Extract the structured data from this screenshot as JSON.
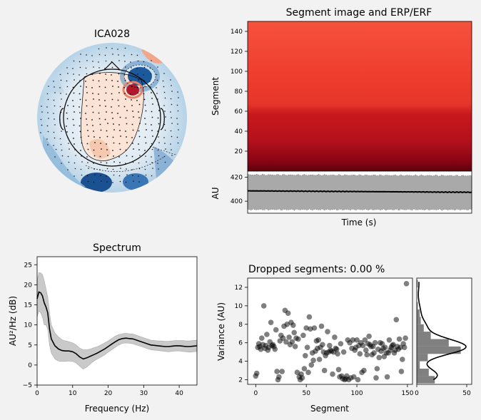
{
  "topomap": {
    "title": "ICA028"
  },
  "segment_image": {
    "title": "Segment image and ERP/ERF",
    "ylabel": "Segment",
    "ylim": [
      0,
      150
    ],
    "yticks": [
      "20",
      "40",
      "60",
      "80",
      "100",
      "120",
      "140"
    ]
  },
  "erp": {
    "ylabel": "AU",
    "xlabel": "Time (s)",
    "ylim": [
      390,
      425
    ],
    "yticks": [
      "400",
      "420"
    ],
    "mean": 408,
    "band": [
      393,
      422
    ]
  },
  "spectrum": {
    "title": "Spectrum",
    "xlabel": "Frequency (Hz)",
    "ylabel": "AU²/Hz (dB)",
    "xlim": [
      0,
      45
    ],
    "ylim": [
      -5,
      27
    ],
    "xticks": [
      "0",
      "10",
      "20",
      "30",
      "40"
    ],
    "yticks": [
      "−5",
      "0",
      "5",
      "10",
      "15",
      "20",
      "25"
    ]
  },
  "dropped": {
    "title": "Dropped segments: 0.00 %",
    "xlabel": "Segment",
    "ylabel": "Variance (AU)",
    "xlim": [
      -8,
      155
    ],
    "ylim": [
      1.5,
      13
    ],
    "xticks": [
      "0",
      "50",
      "100",
      "150"
    ],
    "yticks": [
      "2",
      "4",
      "6",
      "8",
      "10",
      "12"
    ],
    "hist_xticks": [
      "0",
      "50"
    ]
  },
  "chart_data": [
    {
      "type": "heatmap",
      "title": "Segment image and ERP/ERF",
      "ylabel": "Segment",
      "ylim": [
        0,
        150
      ],
      "colormap": "Reds"
    },
    {
      "type": "line",
      "ylabel": "AU",
      "xlabel": "Time (s)",
      "ylim": [
        390,
        425
      ],
      "mean_value": 408,
      "band": [
        393,
        422
      ]
    },
    {
      "type": "line",
      "title": "Spectrum",
      "xlabel": "Frequency (Hz)",
      "ylabel": "AU²/Hz (dB)",
      "xlim": [
        0,
        45
      ],
      "ylim": [
        -5,
        27
      ],
      "x": [
        0,
        0.5,
        1,
        1.5,
        2,
        2.5,
        3,
        3.5,
        4,
        5,
        6,
        7,
        8,
        9,
        10,
        11,
        12,
        13,
        14,
        15,
        16,
        17,
        18,
        19,
        20,
        21,
        22,
        23,
        24,
        25,
        26,
        27,
        28,
        29,
        30,
        31,
        32,
        33,
        34,
        35,
        36,
        37,
        38,
        39,
        40,
        41,
        42,
        43,
        44,
        45
      ],
      "y": [
        16.5,
        18.2,
        18.0,
        17.2,
        15.5,
        14.5,
        13.0,
        9.0,
        6.5,
        4.8,
        4.0,
        3.6,
        3.5,
        3.5,
        3.3,
        2.8,
        2.0,
        1.5,
        1.8,
        2.2,
        2.6,
        3.0,
        3.5,
        4.0,
        4.6,
        5.2,
        5.8,
        6.3,
        6.6,
        6.7,
        6.6,
        6.5,
        6.2,
        5.9,
        5.6,
        5.3,
        5.0,
        4.9,
        4.8,
        4.7,
        4.6,
        4.6,
        4.7,
        4.8,
        4.8,
        4.7,
        4.6,
        4.6,
        4.7,
        4.8
      ],
      "upper": [
        21,
        23,
        23,
        22.5,
        21,
        19,
        17,
        13,
        10,
        8,
        7,
        6.3,
        6.0,
        5.8,
        5.5,
        5.0,
        4.2,
        3.8,
        3.8,
        4.0,
        4.3,
        4.6,
        5.0,
        5.5,
        6.0,
        6.6,
        7.2,
        7.6,
        7.8,
        7.9,
        7.8,
        7.7,
        7.4,
        7.1,
        6.8,
        6.5,
        6.2,
        6.1,
        6.0,
        6.0,
        5.9,
        5.9,
        6.0,
        6.1,
        6.1,
        6.1,
        6.0,
        6.0,
        6.1,
        6.2
      ],
      "lower": [
        12,
        13.5,
        13,
        12,
        10,
        10,
        9,
        5,
        3,
        1.5,
        1.0,
        0.9,
        0.9,
        1.0,
        0.9,
        0.5,
        -0.3,
        -1.0,
        -0.5,
        0.3,
        1.0,
        1.5,
        2.0,
        2.5,
        3.2,
        3.8,
        4.4,
        5.0,
        5.4,
        5.5,
        5.4,
        5.3,
        5.0,
        4.7,
        4.4,
        4.1,
        3.8,
        3.7,
        3.6,
        3.5,
        3.4,
        3.3,
        3.4,
        3.5,
        3.5,
        3.4,
        3.3,
        3.2,
        3.3,
        3.4
      ]
    },
    {
      "type": "scatter",
      "title": "Dropped segments: 0.00 %",
      "xlabel": "Segment",
      "ylabel": "Variance (AU)",
      "xlim": [
        -8,
        155
      ],
      "ylim": [
        1.5,
        13
      ],
      "x": [
        0,
        1,
        2,
        3,
        4,
        5,
        6,
        7,
        8,
        9,
        10,
        11,
        12,
        13,
        14,
        15,
        16,
        17,
        18,
        19,
        20,
        21,
        22,
        23,
        24,
        25,
        26,
        27,
        28,
        29,
        30,
        31,
        32,
        33,
        34,
        35,
        36,
        37,
        38,
        39,
        40,
        41,
        42,
        43,
        44,
        45,
        46,
        47,
        48,
        49,
        50,
        51,
        52,
        53,
        54,
        55,
        56,
        57,
        58,
        59,
        60,
        61,
        62,
        63,
        64,
        65,
        66,
        67,
        68,
        69,
        70,
        71,
        72,
        73,
        74,
        75,
        76,
        77,
        78,
        79,
        80,
        81,
        82,
        83,
        84,
        85,
        86,
        87,
        88,
        89,
        90,
        91,
        92,
        93,
        94,
        95,
        96,
        97,
        98,
        99,
        100,
        101,
        102,
        103,
        104,
        105,
        106,
        107,
        108,
        109,
        110,
        111,
        112,
        113,
        114,
        115,
        116,
        117,
        118,
        119,
        120,
        121,
        122,
        123,
        124,
        125,
        126,
        127,
        128,
        129,
        130,
        131,
        132,
        133,
        134,
        135,
        136,
        137,
        138,
        139,
        140,
        141,
        142,
        143,
        144,
        145,
        146,
        147,
        148,
        149
      ],
      "y": [
        2.4,
        2.7,
        5.5,
        5.9,
        5.6,
        5.3,
        6.5,
        5.8,
        10.0,
        5.4,
        5.7,
        6.9,
        5.2,
        5.5,
        6.1,
        8.2,
        5.7,
        5.8,
        5.6,
        5.3,
        7.4,
        2.9,
        2.0,
        2.3,
        6.2,
        6.8,
        2.9,
        6.5,
        7.8,
        9.5,
        6.1,
        8.0,
        9.2,
        6.6,
        5.8,
        8.2,
        6.1,
        7.9,
        7.1,
        5.6,
        6.5,
        2.8,
        6.4,
        2.3,
        2.0,
        2.6,
        2.2,
        6.8,
        3.2,
        4.6,
        7.6,
        5.5,
        2.8,
        8.8,
        7.5,
        3.6,
        4.9,
        4.1,
        7.6,
        5.1,
        6.2,
        5.4,
        6.3,
        4.2,
        5.5,
        7.8,
        5.8,
        5.0,
        3.0,
        4.6,
        4.9,
        7.2,
        5.0,
        5.7,
        5.2,
        5.1,
        2.6,
        5.0,
        6.6,
        5.4,
        5.3,
        4.8,
        3.1,
        2.3,
        5.9,
        2.4,
        2.1,
        5.0,
        2.0,
        2.1,
        2.4,
        6.3,
        2.0,
        6.0,
        2.2,
        5.4,
        6.3,
        2.3,
        5.2,
        5.5,
        6.3,
        2.0,
        5.7,
        4.8,
        6.0,
        2.8,
        5.7,
        3.0,
        6.3,
        5.2,
        4.7,
        5.9,
        6.7,
        5.8,
        5.6,
        4.7,
        5.6,
        4.9,
        6.0,
        2.2,
        3.2,
        5.3,
        4.4,
        6.0,
        5.1,
        5.9,
        5.4,
        4.5,
        5.5,
        4.9,
        2.3,
        4.9,
        6.3,
        5.2,
        5.5,
        5.7,
        5.8,
        4.9,
        5.2,
        8.5,
        5.6,
        5.3,
        6.4,
        5.5,
        2.9,
        4.2,
        5.9,
        5.5,
        6.5,
        12.4
      ],
      "hist_xlim": [
        0,
        55
      ]
    }
  ]
}
